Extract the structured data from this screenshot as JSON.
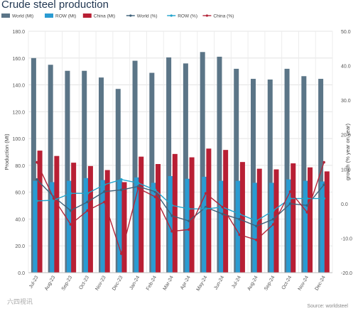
{
  "chart_data": {
    "type": "bar",
    "title": "Crude steel production",
    "ylabel": "Production (Mt)",
    "y2label": "growth (% year on year)",
    "ylim": [
      0,
      180
    ],
    "y2lim": [
      -20,
      50
    ],
    "yticks": [
      "0.0",
      "20.0",
      "40.0",
      "60.0",
      "80.0",
      "100.0",
      "120.0",
      "140.0",
      "160.0",
      "180.0"
    ],
    "y2ticks": [
      "-20.0",
      "-10.0",
      "0.0",
      "10.0",
      "20.0",
      "30.0",
      "40.0",
      "50.0"
    ],
    "categories": [
      "Jul-23",
      "Aug-23",
      "Sep-23",
      "Oct-23",
      "Nov-23",
      "Dec-23",
      "Jan-24",
      "Feb-24",
      "Mar-24",
      "Apr-24",
      "May-24",
      "Jun-24",
      "Jul-24",
      "Aug-24",
      "Sep-24",
      "Oct-24",
      "Nov-24",
      "Dec-24"
    ],
    "series": [
      {
        "name": "World (Mt)",
        "kind": "bar",
        "color": "#5b7587",
        "values": [
          160,
          155,
          150.5,
          150.5,
          145.5,
          137,
          158,
          149,
          160.5,
          156,
          164.5,
          161,
          152,
          144.5,
          144,
          152,
          146.5,
          144.5
        ]
      },
      {
        "name": "ROW (Mt)",
        "kind": "bar",
        "color": "#2a9bd2",
        "values": [
          68.5,
          67.5,
          68.5,
          70.5,
          69,
          68.5,
          71,
          67,
          72,
          70,
          71.5,
          68.5,
          68.5,
          67,
          67,
          69.5,
          68.5,
          68
        ]
      },
      {
        "name": "China (Mt)",
        "kind": "bar",
        "color": "#b81f34",
        "values": [
          91,
          87,
          82,
          79.5,
          76.5,
          67.5,
          86.5,
          81,
          88.5,
          86,
          92.5,
          91.5,
          82.5,
          77.5,
          77,
          81.5,
          78.5,
          75.5
        ]
      },
      {
        "name": "World (%)",
        "kind": "line",
        "axis": "y2",
        "color": "#3e6079",
        "values": [
          7,
          2,
          -2,
          0.5,
          3.5,
          4,
          5,
          3.5,
          -3.5,
          -5,
          -1,
          -3,
          -4.5,
          -6.5,
          -4.5,
          0,
          -0.5,
          5.5
        ]
      },
      {
        "name": "ROW (%)",
        "kind": "line",
        "axis": "y2",
        "color": "#20a3cc",
        "values": [
          0.8,
          1,
          3,
          3,
          5.5,
          7,
          6,
          4,
          -0.5,
          -1.5,
          -1.5,
          -1,
          -3,
          -5,
          -2,
          1.5,
          1.5,
          1.5
        ]
      },
      {
        "name": "China (%)",
        "kind": "line",
        "axis": "y2",
        "color": "#b3263a",
        "values": [
          12,
          1.5,
          -6,
          -2,
          0.5,
          -14.5,
          4.5,
          2,
          -8,
          -7.5,
          3,
          -1,
          -9,
          -10.5,
          -6,
          3.5,
          -2.5,
          12
        ]
      }
    ],
    "legend_position": "top",
    "grid": true
  },
  "source": "Source: worldsteel",
  "watermark": "六四视讯"
}
